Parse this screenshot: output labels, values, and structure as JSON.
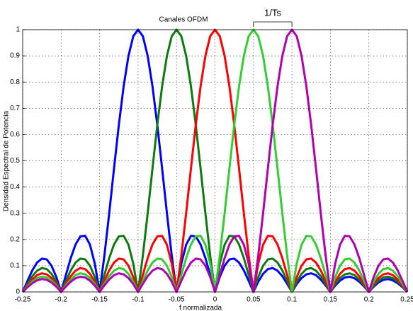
{
  "chart_data": {
    "type": "line",
    "title": "Canales OFDM",
    "x_label": "f normalizada",
    "y_label": "Densidad Espectral de Potencia",
    "annotation": "1/Ts",
    "annotation_span": [
      0.05,
      0.1
    ],
    "x": [
      -0.25,
      -0.24375,
      -0.2375,
      -0.23125,
      -0.225,
      -0.21875,
      -0.2125,
      -0.20625,
      -0.2,
      -0.19375,
      -0.1875,
      -0.18125,
      -0.175,
      -0.16875,
      -0.1625,
      -0.15625,
      -0.15,
      -0.14375,
      -0.1375,
      -0.13125,
      -0.125,
      -0.11875,
      -0.1125,
      -0.10625,
      -0.1,
      -0.09375,
      -0.0875,
      -0.08125,
      -0.075,
      -0.06875,
      -0.0625,
      -0.05625,
      -0.05,
      -0.04375,
      -0.0375,
      -0.03125,
      -0.025,
      -0.01875,
      -0.0125,
      -0.00625,
      0,
      0.00625,
      0.0125,
      0.01875,
      0.025,
      0.03125,
      0.0375,
      0.04375,
      0.05,
      0.05625,
      0.0625,
      0.06875,
      0.075,
      0.08125,
      0.0875,
      0.09375,
      0.1,
      0.10625,
      0.1125,
      0.11875,
      0.125,
      0.13125,
      0.1375,
      0.14375,
      0.15,
      0.15625,
      0.1625,
      0.16875,
      0.175,
      0.18125,
      0.1875,
      0.19375,
      0.2,
      0.20625,
      0.2125,
      0.21875,
      0.225,
      0.23125,
      0.2375,
      0.24375,
      0.25
    ],
    "series": [
      {
        "color": "#0000ff",
        "values": [
          0,
          0.042,
          0.082,
          0.112,
          0.127,
          0.124,
          0.1,
          0.057,
          0,
          0.065,
          0.129,
          0.181,
          0.212,
          0.214,
          0.18,
          0.108,
          0,
          0.139,
          0.3,
          0.471,
          0.637,
          0.784,
          0.9,
          0.975,
          1,
          0.975,
          0.9,
          0.784,
          0.637,
          0.471,
          0.3,
          0.139,
          0,
          0.108,
          0.18,
          0.214,
          0.212,
          0.181,
          0.129,
          0.065,
          0,
          0.057,
          0.1,
          0.124,
          0.127,
          0.112,
          0.082,
          0.042,
          0,
          0.039,
          0.069,
          0.087,
          0.091,
          0.081,
          0.06,
          0.031,
          0,
          0.03,
          0.053,
          0.067,
          0.071,
          0.064,
          0.047,
          0.025,
          0,
          0.024,
          0.043,
          0.055,
          0.058,
          0.052,
          0.039,
          0.021,
          0,
          0.02,
          0.036,
          0.046,
          0.049,
          0.044,
          0.033,
          0.018,
          0
        ]
      },
      {
        "color": "#0d7a0d",
        "values": [
          0,
          0.031,
          0.06,
          0.081,
          0.091,
          0.087,
          0.069,
          0.039,
          0,
          0.042,
          0.082,
          0.112,
          0.127,
          0.124,
          0.1,
          0.057,
          0,
          0.065,
          0.129,
          0.181,
          0.212,
          0.214,
          0.18,
          0.108,
          0,
          0.139,
          0.3,
          0.471,
          0.637,
          0.784,
          0.9,
          0.975,
          1,
          0.975,
          0.9,
          0.784,
          0.637,
          0.471,
          0.3,
          0.139,
          0,
          0.108,
          0.18,
          0.214,
          0.212,
          0.181,
          0.129,
          0.065,
          0,
          0.057,
          0.1,
          0.124,
          0.127,
          0.112,
          0.082,
          0.042,
          0,
          0.039,
          0.069,
          0.087,
          0.091,
          0.081,
          0.06,
          0.031,
          0,
          0.03,
          0.053,
          0.067,
          0.071,
          0.064,
          0.047,
          0.025,
          0,
          0.024,
          0.043,
          0.055,
          0.058,
          0.052,
          0.039,
          0.021,
          0
        ]
      },
      {
        "color": "#ff0000",
        "values": [
          0,
          0.025,
          0.047,
          0.064,
          0.071,
          0.067,
          0.053,
          0.03,
          0,
          0.031,
          0.06,
          0.081,
          0.091,
          0.087,
          0.069,
          0.039,
          0,
          0.042,
          0.082,
          0.112,
          0.127,
          0.124,
          0.1,
          0.057,
          0,
          0.065,
          0.129,
          0.181,
          0.212,
          0.214,
          0.18,
          0.108,
          0,
          0.139,
          0.3,
          0.471,
          0.637,
          0.784,
          0.9,
          0.975,
          1,
          0.975,
          0.9,
          0.784,
          0.637,
          0.471,
          0.3,
          0.139,
          0,
          0.108,
          0.18,
          0.214,
          0.212,
          0.181,
          0.129,
          0.065,
          0,
          0.057,
          0.1,
          0.124,
          0.127,
          0.112,
          0.082,
          0.042,
          0,
          0.039,
          0.069,
          0.087,
          0.091,
          0.081,
          0.06,
          0.031,
          0,
          0.03,
          0.053,
          0.067,
          0.071,
          0.064,
          0.047,
          0.025,
          0
        ]
      },
      {
        "color": "#33cc33",
        "values": [
          0,
          0.021,
          0.039,
          0.052,
          0.058,
          0.055,
          0.043,
          0.024,
          0,
          0.025,
          0.047,
          0.064,
          0.071,
          0.067,
          0.053,
          0.03,
          0,
          0.031,
          0.06,
          0.081,
          0.091,
          0.087,
          0.069,
          0.039,
          0,
          0.042,
          0.082,
          0.112,
          0.127,
          0.124,
          0.1,
          0.057,
          0,
          0.065,
          0.129,
          0.181,
          0.212,
          0.214,
          0.18,
          0.108,
          0,
          0.139,
          0.3,
          0.471,
          0.637,
          0.784,
          0.9,
          0.975,
          1,
          0.975,
          0.9,
          0.784,
          0.637,
          0.471,
          0.3,
          0.139,
          0,
          0.108,
          0.18,
          0.214,
          0.212,
          0.181,
          0.129,
          0.065,
          0,
          0.057,
          0.1,
          0.124,
          0.127,
          0.112,
          0.082,
          0.042,
          0,
          0.039,
          0.069,
          0.087,
          0.091,
          0.081,
          0.06,
          0.031,
          0
        ]
      },
      {
        "color": "#b000b0",
        "values": [
          0,
          0.018,
          0.033,
          0.044,
          0.049,
          0.046,
          0.036,
          0.02,
          0,
          0.021,
          0.039,
          0.052,
          0.058,
          0.055,
          0.043,
          0.024,
          0,
          0.025,
          0.047,
          0.064,
          0.071,
          0.067,
          0.053,
          0.03,
          0,
          0.031,
          0.06,
          0.081,
          0.091,
          0.087,
          0.069,
          0.039,
          0,
          0.042,
          0.082,
          0.112,
          0.127,
          0.124,
          0.1,
          0.057,
          0,
          0.065,
          0.129,
          0.181,
          0.212,
          0.214,
          0.18,
          0.108,
          0,
          0.139,
          0.3,
          0.471,
          0.637,
          0.784,
          0.9,
          0.975,
          1,
          0.975,
          0.9,
          0.784,
          0.637,
          0.471,
          0.3,
          0.139,
          0,
          0.108,
          0.18,
          0.214,
          0.212,
          0.181,
          0.129,
          0.065,
          0,
          0.057,
          0.1,
          0.124,
          0.127,
          0.112,
          0.082,
          0.042,
          0
        ]
      }
    ],
    "xlim": [
      -0.25,
      0.25
    ],
    "xticks": [
      -0.25,
      -0.2,
      -0.15,
      -0.1,
      -0.05,
      0,
      0.05,
      0.1,
      0.15,
      0.2,
      0.25
    ],
    "ylim": [
      0,
      1
    ],
    "yticks": [
      0,
      0.1,
      0.2,
      0.3,
      0.4,
      0.5,
      0.6,
      0.7,
      0.8,
      0.9,
      1
    ],
    "grid": true
  }
}
